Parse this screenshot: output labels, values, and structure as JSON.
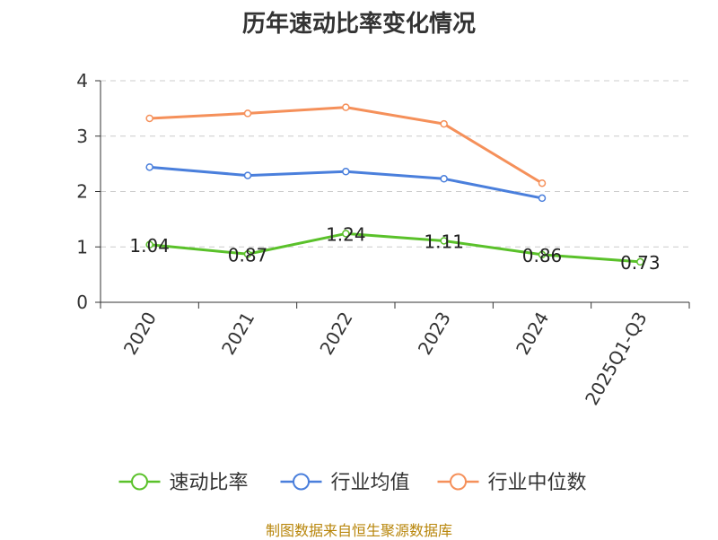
{
  "chart_data": {
    "type": "line",
    "title": "历年速动比率变化情况",
    "categories": [
      "2020",
      "2021",
      "2022",
      "2023",
      "2024",
      "2025Q1-Q3"
    ],
    "ylim": [
      0,
      4
    ],
    "yticks": [
      0,
      1,
      2,
      3,
      4
    ],
    "grid": true,
    "xlabel": "",
    "ylabel": "",
    "legend_position": "bottom-center",
    "series": [
      {
        "name": "速动比率",
        "color": "#5ac12a",
        "values": [
          1.04,
          0.87,
          1.24,
          1.11,
          0.86,
          0.73
        ],
        "labels": [
          "1.04",
          "0.87",
          "1.24",
          "1.11",
          "0.86",
          "0.73"
        ]
      },
      {
        "name": "行业均值",
        "color": "#4a7fdc",
        "values": [
          2.44,
          2.29,
          2.36,
          2.23,
          1.88,
          null
        ]
      },
      {
        "name": "行业中位数",
        "color": "#f5905a",
        "values": [
          3.32,
          3.41,
          3.52,
          3.22,
          2.15,
          null
        ]
      }
    ]
  },
  "footer": {
    "source": "制图数据来自恒生聚源数据库"
  }
}
